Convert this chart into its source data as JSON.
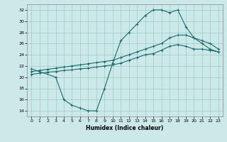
{
  "xlabel": "Humidex (Indice chaleur)",
  "xlim": [
    -0.5,
    23.5
  ],
  "ylim": [
    13,
    33
  ],
  "yticks": [
    14,
    16,
    18,
    20,
    22,
    24,
    26,
    28,
    30,
    32
  ],
  "xticks": [
    0,
    1,
    2,
    3,
    4,
    5,
    6,
    7,
    8,
    9,
    10,
    11,
    12,
    13,
    14,
    15,
    16,
    17,
    18,
    19,
    20,
    21,
    22,
    23
  ],
  "bg_color": "#cce8e8",
  "line_color": "#1a6b6b",
  "grid_color": "#99cccc",
  "curve1_x": [
    0,
    1,
    3,
    4,
    5,
    6,
    7,
    8,
    9,
    10,
    11,
    12,
    13,
    14,
    15,
    16,
    17,
    18,
    19,
    20,
    21,
    22,
    23
  ],
  "curve1_y": [
    21.5,
    21,
    20,
    16,
    15,
    14.5,
    14,
    14,
    18,
    22.5,
    26.5,
    28,
    29.5,
    31,
    32,
    32,
    31.5,
    32,
    29,
    27,
    26,
    25,
    24.5
  ],
  "curve2_x": [
    0,
    1,
    2,
    3,
    4,
    5,
    6,
    7,
    8,
    9,
    10,
    11,
    12,
    13,
    14,
    15,
    16,
    17,
    18,
    19,
    20,
    21,
    22,
    23
  ],
  "curve2_y": [
    21.0,
    21.2,
    21.4,
    21.6,
    21.8,
    22.0,
    22.2,
    22.4,
    22.6,
    22.8,
    23.0,
    23.5,
    24.0,
    24.5,
    25.0,
    25.5,
    26.0,
    27.0,
    27.5,
    27.5,
    27.0,
    26.5,
    26.0,
    25.0
  ],
  "curve3_x": [
    0,
    1,
    2,
    3,
    4,
    5,
    6,
    7,
    8,
    9,
    10,
    11,
    12,
    13,
    14,
    15,
    16,
    17,
    18,
    19,
    20,
    21,
    22,
    23
  ],
  "curve3_y": [
    20.5,
    20.7,
    20.9,
    21.0,
    21.2,
    21.3,
    21.5,
    21.6,
    21.8,
    22.0,
    22.2,
    22.5,
    23.0,
    23.5,
    24.0,
    24.2,
    24.8,
    25.5,
    25.8,
    25.5,
    25.0,
    25.0,
    24.8,
    24.5
  ]
}
